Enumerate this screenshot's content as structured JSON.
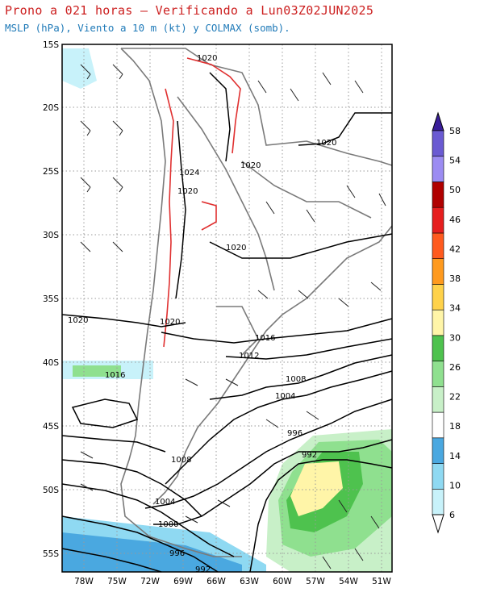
{
  "header": {
    "title": "Prono a 021 horas — Verificando a Lun03Z02JUN2025",
    "subtitle": "MSLP (hPa), Viento a 10 m (kt) y COLMAX (somb)."
  },
  "axes": {
    "lat_labels": [
      "15S",
      "20S",
      "25S",
      "30S",
      "35S",
      "40S",
      "45S",
      "50S",
      "55S"
    ],
    "lon_labels": [
      "78W",
      "75W",
      "72W",
      "69W",
      "66W",
      "63W",
      "60W",
      "57W",
      "54W",
      "51W"
    ]
  },
  "isobar_labels": [
    "1020",
    "1020",
    "1024",
    "1020",
    "1020",
    "1020",
    "1020",
    "1020",
    "1016",
    "1016",
    "1012",
    "1008",
    "1004",
    "996",
    "992",
    "1008",
    "1004",
    "1000",
    "996",
    "992"
  ],
  "colorbar": {
    "values": [
      "6",
      "10",
      "14",
      "18",
      "22",
      "26",
      "30",
      "34",
      "38",
      "42",
      "46",
      "50",
      "54",
      "58"
    ],
    "colors": [
      "#ffffff",
      "#c8f2fa",
      "#8fd9f2",
      "#4aa8e0",
      "#ffffff",
      "#c8f0c8",
      "#8fe08f",
      "#4ec24e",
      "#fff5a8",
      "#ffd24a",
      "#ff9a1e",
      "#ff5a1e",
      "#e61e1e",
      "#b00000",
      "#9c8cf2",
      "#6a5ad2",
      "#3a1e9a"
    ]
  },
  "colors": {
    "title": "#cc1f1f",
    "subtitle": "#1f7ab8",
    "isobar": "#000000",
    "terrain_contour": "#e03030",
    "coastline": "#7a7a7a"
  }
}
